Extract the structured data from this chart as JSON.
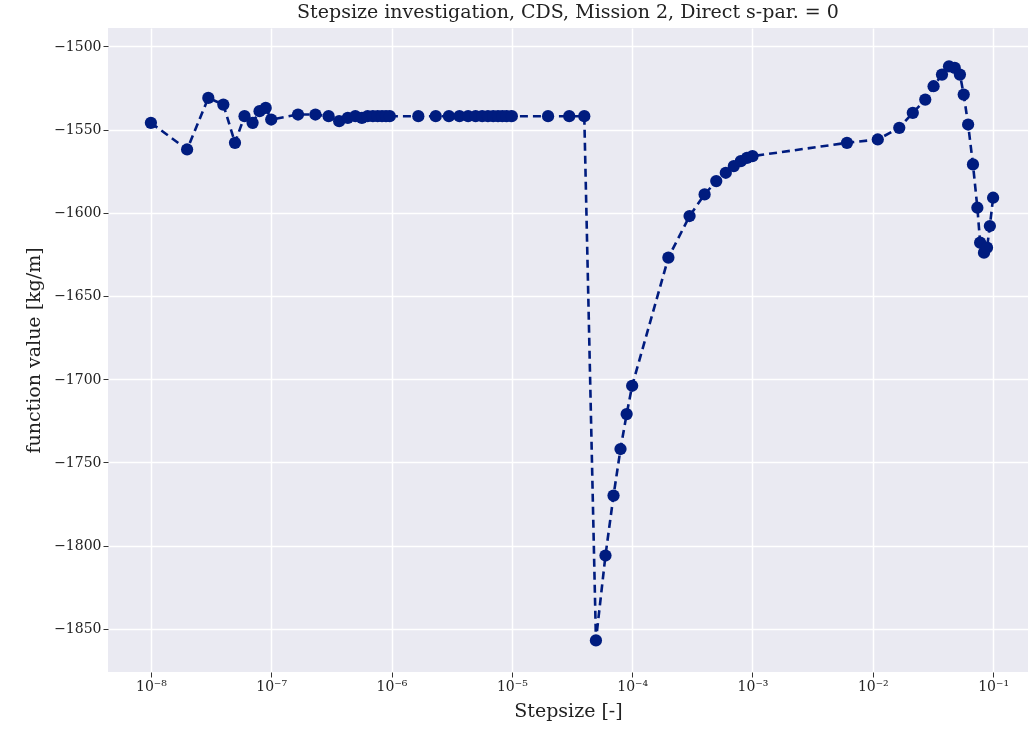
{
  "chart_data": {
    "type": "line",
    "title": "Stepsize investigation, CDS, Mission 2, Direct s-par. = 0",
    "xlabel": "Stepsize [-]",
    "ylabel": "function value [kg/m]",
    "log": "x",
    "grid": true,
    "marker": "circle",
    "line_style": "dashed",
    "xlim": [
      4.4e-09,
      0.195
    ],
    "ylim": [
      -1876,
      -1489
    ],
    "xticks": [
      {
        "value": 1e-08,
        "label": "10⁻⁸"
      },
      {
        "value": 1e-07,
        "label": "10⁻⁷"
      },
      {
        "value": 1e-06,
        "label": "10⁻⁶"
      },
      {
        "value": 1e-05,
        "label": "10⁻⁵"
      },
      {
        "value": 0.0001,
        "label": "10⁻⁴"
      },
      {
        "value": 0.001,
        "label": "10⁻³"
      },
      {
        "value": 0.01,
        "label": "10⁻²"
      },
      {
        "value": 0.1,
        "label": "10⁻¹"
      }
    ],
    "yticks": [
      {
        "value": -1850,
        "label": "−1850"
      },
      {
        "value": -1800,
        "label": "−1800"
      },
      {
        "value": -1750,
        "label": "−1750"
      },
      {
        "value": -1700,
        "label": "−1700"
      },
      {
        "value": -1650,
        "label": "−1650"
      },
      {
        "value": -1600,
        "label": "−1600"
      },
      {
        "value": -1550,
        "label": "−1550"
      },
      {
        "value": -1500,
        "label": "−1500"
      }
    ],
    "series": [
      {
        "color": "#001c7f",
        "x": [
          1e-08,
          2e-08,
          3e-08,
          4e-08,
          5e-08,
          6e-08,
          7e-08,
          8e-08,
          9e-08,
          1e-07,
          1.67e-07,
          2.33e-07,
          3e-07,
          3.67e-07,
          4.33e-07,
          5e-07,
          5.67e-07,
          6.33e-07,
          7e-07,
          7.67e-07,
          8.33e-07,
          9e-07,
          9.67e-07,
          1.67e-06,
          2.33e-06,
          3e-06,
          3.67e-06,
          4.33e-06,
          5e-06,
          5.67e-06,
          6.33e-06,
          7e-06,
          7.67e-06,
          8.33e-06,
          9e-06,
          1e-05,
          2e-05,
          3e-05,
          4e-05,
          5e-05,
          6e-05,
          7e-05,
          8e-05,
          9e-05,
          0.0001,
          0.0002,
          0.0003,
          0.0004,
          0.0005,
          0.0006,
          0.0007,
          0.0008,
          0.0009,
          0.001,
          0.0061,
          0.011,
          0.0166,
          0.0215,
          0.0273,
          0.032,
          0.0376,
          0.043,
          0.048,
          0.053,
          0.057,
          0.062,
          0.068,
          0.074,
          0.078,
          0.084,
          0.089,
          0.094,
          0.1
        ],
        "values": [
          -1546,
          -1562,
          -1531,
          -1535,
          -1558,
          -1542,
          -1546,
          -1539,
          -1537,
          -1544,
          -1541,
          -1541,
          -1542,
          -1545,
          -1543,
          -1542,
          -1543,
          -1542,
          -1542,
          -1542,
          -1542,
          -1542,
          -1542,
          -1542,
          -1542,
          -1542,
          -1542,
          -1542,
          -1542,
          -1542,
          -1542,
          -1542,
          -1542,
          -1542,
          -1542,
          -1542,
          -1542,
          -1542,
          -1542,
          -1857,
          -1806,
          -1770,
          -1742,
          -1721,
          -1704,
          -1627,
          -1602,
          -1589,
          -1581,
          -1576,
          -1572,
          -1569,
          -1567,
          -1566,
          -1558,
          -1556,
          -1549,
          -1540,
          -1532,
          -1524,
          -1517,
          -1512,
          -1513,
          -1517,
          -1529,
          -1547,
          -1571,
          -1597,
          -1618,
          -1624,
          -1621,
          -1608,
          -1591
        ]
      }
    ]
  }
}
